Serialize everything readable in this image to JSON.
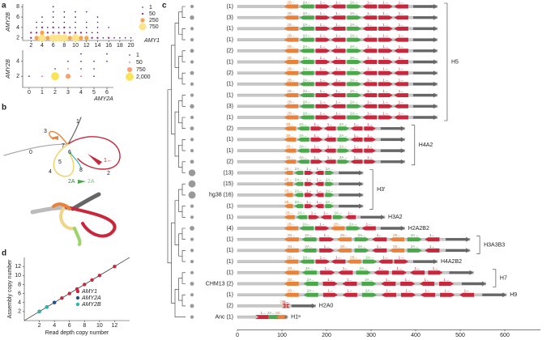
{
  "panel_labels": [
    "a",
    "b",
    "c",
    "d"
  ],
  "graph": {
    "node_labels": [
      "0",
      "1",
      "2",
      "3",
      "4",
      "5",
      "6",
      "7",
      "8",
      "1←",
      "2A",
      "2A"
    ]
  },
  "chart_data": [
    {
      "type": "bubble",
      "x_label": "AMY1",
      "y_label": "AMY2B",
      "x": [
        2,
        3,
        4,
        5,
        6,
        7,
        8,
        9,
        10,
        11,
        12,
        13,
        14,
        15,
        16,
        17,
        18,
        19,
        20,
        2,
        3,
        4,
        5,
        6,
        7,
        8,
        9,
        10,
        11,
        12,
        13,
        14,
        3,
        4,
        5,
        6,
        7,
        8,
        9,
        10,
        12,
        14,
        16,
        3,
        4,
        6,
        8,
        10,
        12,
        14,
        4,
        6,
        8,
        10,
        14,
        6,
        8,
        10,
        12,
        6
      ],
      "y": [
        2,
        2,
        2,
        2,
        2,
        2,
        2,
        2,
        2,
        2,
        2,
        2,
        2,
        2,
        2,
        2,
        2,
        2,
        2,
        3,
        3,
        3,
        3,
        3,
        3,
        3,
        3,
        3,
        3,
        3,
        3,
        3,
        4,
        4,
        4,
        4,
        4,
        4,
        4,
        4,
        4,
        4,
        4,
        5,
        5,
        5,
        5,
        5,
        5,
        5,
        6,
        6,
        6,
        6,
        6,
        7,
        7,
        7,
        7,
        8
      ],
      "sizes": [
        50,
        250,
        750,
        250,
        750,
        750,
        750,
        250,
        750,
        250,
        250,
        50,
        50,
        1,
        50,
        1,
        1,
        1,
        1,
        50,
        50,
        250,
        50,
        50,
        50,
        50,
        50,
        50,
        50,
        1,
        1,
        1,
        1,
        50,
        1,
        50,
        1,
        50,
        1,
        1,
        1,
        1,
        1,
        1,
        1,
        1,
        1,
        1,
        1,
        1,
        1,
        1,
        1,
        1,
        1,
        1,
        1,
        1,
        1,
        1
      ],
      "xlim": [
        0.5,
        20.5
      ],
      "ylim": [
        1.5,
        8.5
      ],
      "xticks": [
        2,
        4,
        6,
        8,
        10,
        12,
        14,
        16,
        18,
        20
      ],
      "yticks": [
        2,
        4,
        6,
        8
      ],
      "legend": {
        "values": [
          1,
          50,
          250,
          750
        ],
        "colors": [
          "#3b0f70",
          "#8c2981",
          "#f7a34a",
          "#fde38a"
        ]
      }
    },
    {
      "type": "bubble",
      "x_label": "AMY2A",
      "y_label": "AMY2B",
      "x": [
        0,
        1,
        2,
        3,
        4,
        5,
        2,
        3,
        4,
        5,
        3,
        4,
        5,
        6,
        4,
        6
      ],
      "y": [
        2,
        2,
        2,
        2,
        2,
        2,
        3,
        3,
        3,
        3,
        4,
        4,
        4,
        4,
        5,
        5
      ],
      "sizes": [
        1,
        50,
        2000,
        750,
        50,
        1,
        1,
        50,
        1,
        1,
        1,
        1,
        1,
        1,
        1,
        1
      ],
      "xlim": [
        -0.5,
        6.5
      ],
      "ylim": [
        0.5,
        5.5
      ],
      "xticks": [
        0,
        1,
        2,
        3,
        4,
        5,
        6
      ],
      "yticks": [
        2,
        4
      ],
      "legend": {
        "values": [
          1,
          50,
          750,
          {
            "value": 2000,
            "label": "2,000"
          }
        ],
        "colors": [
          "#3b0f70",
          "#de4968",
          "#fe9f6d",
          "#f9e35a"
        ]
      }
    },
    {
      "type": "haplotype",
      "x_label": "Size (kb)",
      "xlim": [
        0,
        680
      ],
      "xticks": [
        0,
        100,
        200,
        300,
        400,
        500,
        600
      ],
      "groups": [
        {
          "label": "H5",
          "rows": [
            {
              "label": "(1)",
              "count": 1,
              "length": 449,
              "genes": [
                "2B←",
                "2A←",
                "1→",
                "1←",
                "2A→",
                "1←",
                "1→",
                "1←"
              ]
            },
            {
              "label": "(3)",
              "count": 3,
              "length": 449,
              "genes": [
                "2B←",
                "2A←",
                "1→",
                "1←",
                "2A→",
                "1←",
                "1→",
                "1←"
              ]
            },
            {
              "label": "(1)",
              "count": 1,
              "length": 449,
              "genes": [
                "2B←",
                "2A←",
                "1→",
                "1←",
                "2A→",
                "1←",
                "1→",
                "1←"
              ]
            },
            {
              "label": "(1)",
              "count": 1,
              "length": 449,
              "genes": [
                "2B←",
                "2A←",
                "1→",
                "1←",
                "2A→",
                "1←",
                "1→",
                "1←"
              ]
            },
            {
              "label": "(2)",
              "count": 2,
              "length": 449,
              "genes": [
                "2B←",
                "2A←",
                "1→",
                "1←",
                "2A→",
                "1←",
                "1→",
                "1←"
              ]
            },
            {
              "label": "(1)",
              "count": 1,
              "length": 449,
              "genes": [
                "2B←",
                "2A←",
                "1→",
                "1←",
                "2A→",
                "1←",
                "1→",
                "1←"
              ]
            },
            {
              "label": "(2)",
              "count": 2,
              "length": 449,
              "genes": [
                "2B←",
                "2A←",
                "1→",
                "1←",
                "2A→",
                "1←",
                "1→",
                "1←"
              ]
            },
            {
              "label": "(1)",
              "count": 1,
              "length": 449,
              "genes": [
                "2B←",
                "2A←",
                "1→",
                "1←",
                "2A→",
                "1←",
                "1→",
                "1←"
              ]
            },
            {
              "label": "(1)",
              "count": 1,
              "length": 449,
              "genes": [
                "2B←",
                "2A←",
                "1→",
                "1←",
                "2A→",
                "1←",
                "1→",
                "1←"
              ]
            },
            {
              "label": "(3)",
              "count": 3,
              "length": 449,
              "genes": [
                "2B←",
                "2A←",
                "1→",
                "1←",
                "2A→",
                "1←",
                "1→",
                "1←"
              ]
            },
            {
              "label": "(1)",
              "count": 1,
              "length": 449,
              "genes": [
                "2B←",
                "2A←",
                "1→",
                "1←",
                "2A→",
                "1←",
                "1→",
                "1←"
              ]
            }
          ]
        },
        {
          "label": "H4A2",
          "rows": [
            {
              "label": "(2)",
              "count": 2,
              "length": 376,
              "genes": [
                "2B←",
                "2A←",
                "1→",
                "1←",
                "2A→",
                "1←",
                "1→"
              ]
            },
            {
              "label": "(1)",
              "count": 1,
              "length": 376,
              "genes": [
                "2B←",
                "2A←",
                "1→",
                "1←",
                "2A→",
                "1←",
                "1→"
              ]
            },
            {
              "label": "(1)",
              "count": 1,
              "length": 376,
              "genes": [
                "2B←",
                "2A←",
                "1→",
                "1←",
                "2A→",
                "1←",
                "1→"
              ]
            },
            {
              "label": "(2)",
              "count": 2,
              "length": 376,
              "genes": [
                "2B←",
                "2A←",
                "1→",
                "1←",
                "2A→",
                "1←",
                "1→"
              ]
            }
          ]
        },
        {
          "label": "H3′",
          "rows": [
            {
              "label": "(13)",
              "count": 13,
              "length": 282,
              "genes": [
                "2B←",
                "2A←",
                "1→",
                "1←",
                "2A→"
              ]
            },
            {
              "label": "(15)",
              "count": 15,
              "length": 282,
              "genes": [
                "2B←",
                "2A←",
                "1→",
                "1←",
                "2A→"
              ]
            },
            {
              "label": "hg38 (16)",
              "count": 16,
              "length": 282,
              "genes": [
                "2B←",
                "2A←",
                "1→",
                "1←",
                "2A→"
              ]
            },
            {
              "label": "(1)",
              "count": 1,
              "length": 282,
              "genes": [
                "2B←",
                "2A←",
                "1→",
                "1←",
                "2A→"
              ]
            }
          ]
        },
        {
          "label": "H3A2",
          "rows": [
            {
              "label": "(1)",
              "count": 1,
              "length": 331,
              "genes": [
                "2B←",
                "2A←",
                "1→",
                "1←",
                "2A→",
                "1←"
              ]
            }
          ]
        },
        {
          "label": "H2A2B2",
          "rows": [
            {
              "label": "(4)",
              "count": 4,
              "length": 376,
              "genes": [
                "2B←",
                "2A←",
                "1→",
                "2B←",
                "2A→",
                "1←"
              ]
            }
          ]
        },
        {
          "label": "H3A3B3",
          "rows": [
            {
              "label": "(1)",
              "count": 1,
              "length": 522,
              "genes": [
                "2B←",
                "2A←",
                "1→",
                "2B←",
                "2A→",
                "1←",
                "2B←",
                "2A→",
                "1←"
              ]
            },
            {
              "label": "(1)",
              "count": 1,
              "length": 522,
              "genes": [
                "2B←",
                "2A←",
                "1→",
                "2B←",
                "2A→",
                "1←",
                "2B←",
                "2A→",
                "1←"
              ]
            }
          ]
        },
        {
          "label": "H4A2B2",
          "rows": [
            {
              "label": "(1)",
              "count": 1,
              "length": 449,
              "genes": [
                "2B←",
                "2A←",
                "1→",
                "1←",
                "2B←",
                "2A→",
                "1←",
                "1→"
              ]
            }
          ]
        },
        {
          "label": "H7",
          "rows": [
            {
              "label": "(1)",
              "count": 1,
              "length": 530,
              "genes": [
                "2B←",
                "2A←",
                "1→",
                "1←",
                "2A→",
                "1←",
                "1→",
                "1←",
                "1→"
              ]
            },
            {
              "label": "CHM13 (2)",
              "count": 2,
              "length": 558,
              "genes": [
                "2B←",
                "2A←",
                "1→",
                "1←",
                "2A→",
                "1←",
                "1→",
                "1←",
                "1→"
              ]
            }
          ]
        },
        {
          "label": "H9",
          "rows": [
            {
              "label": "(1)",
              "count": 1,
              "length": 604,
              "genes": [
                "2B←",
                "2A←",
                "1→",
                "1←",
                "2A→",
                "1←",
                "1→",
                "1←",
                "1→",
                "1←"
              ]
            }
          ]
        },
        {
          "label": "H2A0",
          "rows": [
            {
              "label": "(2)",
              "count": 2,
              "length": 176,
              "genes": [
                "2B←",
                "1→",
                "1←"
              ]
            }
          ]
        },
        {
          "label": "H1ᵃ",
          "rows": [
            {
              "label": "Anc (1)",
              "count": 1,
              "length": 113,
              "genes": [
                "2B←",
                "2A←",
                "1→"
              ]
            }
          ]
        }
      ]
    },
    {
      "type": "scatter",
      "x_label": "Read depth copy number",
      "y_label": "Assembly copy number",
      "xlim": [
        0,
        14
      ],
      "ylim": [
        0,
        14
      ],
      "xticks": [
        2,
        4,
        6,
        8,
        10,
        12
      ],
      "yticks": [
        2,
        4,
        6,
        8,
        10,
        12
      ],
      "series": [
        {
          "name": "AMY1",
          "color": "#c8283c",
          "x": [
            2,
            3,
            4,
            5,
            6,
            7,
            8,
            9,
            10,
            12
          ],
          "values": [
            2,
            3,
            4,
            5,
            6,
            7,
            8,
            9,
            10,
            12
          ]
        },
        {
          "name": "AMY2A",
          "color": "#2a4d8f",
          "x": [
            2,
            3,
            4
          ],
          "values": [
            2,
            3,
            4
          ]
        },
        {
          "name": "AMY2B",
          "color": "#2bb5b0",
          "x": [
            2,
            3
          ],
          "values": [
            2,
            3
          ]
        }
      ]
    }
  ]
}
